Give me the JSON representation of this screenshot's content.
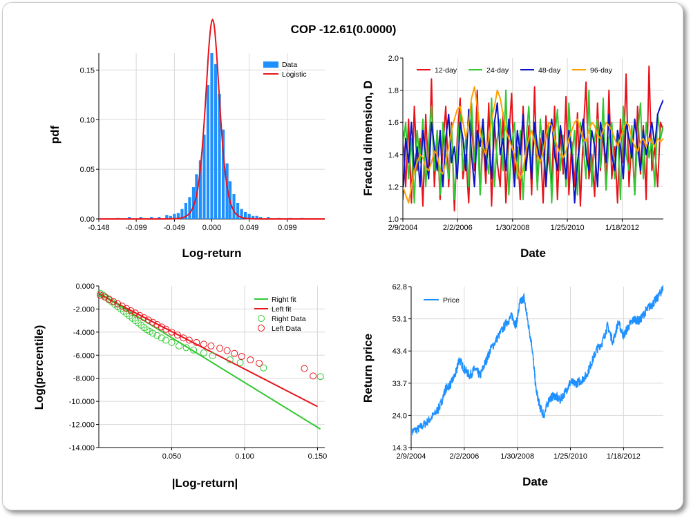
{
  "title": "COP -12.61(0.0000)",
  "chart_data": [
    {
      "id": "hist",
      "type": "bar",
      "xlabel": "Log-return",
      "ylabel": "pdf",
      "xlim": [
        -0.148,
        0.148
      ],
      "ylim": [
        0,
        0.167
      ],
      "xticks": [
        "-0.148",
        "-0.099",
        "-0.049",
        "0.000",
        "0.049",
        "0.099"
      ],
      "xtick_values": [
        -0.148,
        -0.099,
        -0.049,
        0.0,
        0.049,
        0.099
      ],
      "yticks": [
        "0.00",
        "0.05",
        "0.10",
        "0.15"
      ],
      "ytick_values": [
        0.0,
        0.05,
        0.1,
        0.15
      ],
      "legend": [
        "Data",
        "Logistic"
      ],
      "colors": {
        "bars": "#1e90ff",
        "fit": "#e8121a"
      },
      "bin_width": 0.0049,
      "bins": [
        [
          -0.123,
          0.001
        ],
        [
          -0.108,
          0.002
        ],
        [
          -0.093,
          0.002
        ],
        [
          -0.079,
          0.002
        ],
        [
          -0.069,
          0.002
        ],
        [
          -0.059,
          0.004
        ],
        [
          -0.054,
          0.003
        ],
        [
          -0.049,
          0.005
        ],
        [
          -0.044,
          0.006
        ],
        [
          -0.039,
          0.01
        ],
        [
          -0.034,
          0.016
        ],
        [
          -0.029,
          0.022
        ],
        [
          -0.024,
          0.032
        ],
        [
          -0.02,
          0.045
        ],
        [
          -0.015,
          0.059
        ],
        [
          -0.01,
          0.085
        ],
        [
          -0.005,
          0.135
        ],
        [
          0.0,
          0.167
        ],
        [
          0.005,
          0.156
        ],
        [
          0.01,
          0.126
        ],
        [
          0.015,
          0.09
        ],
        [
          0.02,
          0.056
        ],
        [
          0.024,
          0.038
        ],
        [
          0.029,
          0.025
        ],
        [
          0.034,
          0.016
        ],
        [
          0.039,
          0.01
        ],
        [
          0.044,
          0.007
        ],
        [
          0.049,
          0.005
        ],
        [
          0.054,
          0.003
        ],
        [
          0.059,
          0.003
        ],
        [
          0.064,
          0.002
        ],
        [
          0.074,
          0.002
        ],
        [
          0.088,
          0.001
        ],
        [
          0.103,
          0.001
        ],
        [
          0.118,
          0.001
        ]
      ],
      "fit": {
        "mu": 0.001,
        "s": 0.0061
      }
    },
    {
      "id": "fractal",
      "type": "line",
      "xlabel": "Date",
      "ylabel": "Fractal dimension, D",
      "xlim": [
        0,
        9.5
      ],
      "ylim": [
        1.0,
        2.0
      ],
      "xticks": [
        "2/9/2004",
        "2/2/2006",
        "1/30/2008",
        "1/25/2010",
        "1/18/2012"
      ],
      "xtick_values": [
        0,
        2,
        4,
        6,
        8
      ],
      "yticks": [
        "1.0",
        "1.2",
        "1.4",
        "1.6",
        "1.8",
        "2.0"
      ],
      "ytick_values": [
        1.0,
        1.2,
        1.4,
        1.6,
        1.8,
        2.0
      ],
      "series": [
        {
          "name": "12-day",
          "color": "#e8121a",
          "y": [
            1.55,
            1.2,
            1.62,
            1.1,
            1.7,
            1.3,
            1.5,
            1.08,
            1.65,
            1.25,
            1.87,
            1.2,
            1.55,
            1.12,
            1.45,
            1.7,
            1.2,
            1.6,
            1.05,
            1.5,
            1.75,
            1.25,
            1.4,
            1.1,
            1.62,
            1.3,
            1.8,
            1.15,
            1.5,
            1.22,
            1.72,
            1.08,
            1.6,
            1.35,
            1.2,
            1.66,
            1.1,
            1.5,
            1.78,
            1.25,
            1.45,
            1.12,
            1.7,
            1.3,
            1.58,
            1.15,
            1.82,
            1.2,
            1.5,
            1.1,
            1.64,
            1.36,
            1.22,
            1.7,
            1.12,
            1.55,
            1.28,
            1.76,
            1.15,
            1.48,
            1.2,
            1.66,
            1.08,
            1.52,
            1.85,
            1.25,
            1.4,
            1.14,
            1.72,
            1.3,
            1.56,
            1.18,
            1.8,
            1.25,
            1.45,
            1.1,
            1.62,
            1.35,
            1.9,
            1.2,
            1.5,
            1.15,
            1.7,
            1.28,
            1.58,
            1.12,
            1.95,
            1.3,
            1.45,
            1.2,
            1.6,
            1.55
          ]
        },
        {
          "name": "24-day",
          "color": "#32c832",
          "y": [
            1.45,
            1.6,
            1.25,
            1.5,
            1.1,
            1.55,
            1.35,
            1.62,
            1.2,
            1.48,
            1.7,
            1.3,
            1.55,
            1.15,
            1.6,
            1.4,
            1.25,
            1.58,
            1.12,
            1.45,
            1.65,
            1.3,
            1.5,
            1.2,
            1.72,
            1.35,
            1.55,
            1.15,
            1.6,
            1.4,
            1.28,
            1.75,
            1.2,
            1.5,
            1.62,
            1.3,
            1.8,
            1.15,
            1.45,
            1.6,
            1.25,
            1.55,
            1.12,
            1.48,
            1.7,
            1.3,
            1.55,
            1.18,
            1.62,
            1.4,
            1.25,
            1.58,
            1.1,
            1.5,
            1.68,
            1.3,
            1.52,
            1.2,
            1.72,
            1.38,
            1.55,
            1.15,
            1.6,
            1.45,
            1.25,
            1.8,
            1.2,
            1.5,
            1.62,
            1.32,
            1.75,
            1.18,
            1.5,
            1.6,
            1.25,
            1.55,
            1.12,
            1.7,
            1.4,
            1.3,
            1.58,
            1.15,
            1.52,
            1.72,
            1.25,
            1.6,
            1.38,
            1.5,
            1.2,
            1.65,
            1.5,
            1.58
          ]
        },
        {
          "name": "48-day",
          "color": "#0a14c8",
          "y": [
            1.12,
            1.5,
            1.35,
            1.6,
            1.3,
            1.45,
            1.2,
            1.55,
            1.4,
            1.25,
            1.6,
            1.45,
            1.3,
            1.55,
            1.2,
            1.5,
            1.65,
            1.35,
            1.45,
            1.25,
            1.6,
            1.5,
            1.3,
            1.68,
            1.4,
            1.2,
            1.55,
            1.45,
            1.62,
            1.3,
            1.5,
            1.25,
            1.6,
            1.72,
            1.4,
            1.5,
            1.3,
            1.62,
            1.45,
            1.2,
            1.55,
            1.4,
            1.65,
            1.3,
            1.5,
            1.25,
            1.6,
            1.45,
            1.35,
            1.55,
            1.2,
            1.5,
            1.62,
            1.4,
            1.3,
            1.58,
            1.45,
            1.25,
            1.55,
            1.4,
            1.1,
            1.35,
            1.5,
            1.62,
            1.4,
            1.3,
            1.55,
            1.45,
            1.2,
            1.6,
            1.5,
            1.35,
            1.65,
            1.4,
            1.3,
            1.55,
            1.45,
            1.25,
            1.6,
            1.5,
            1.38,
            1.62,
            1.45,
            1.3,
            1.55,
            1.4,
            1.5,
            1.6,
            1.45,
            1.65,
            1.7,
            1.74
          ]
        },
        {
          "name": "96-day",
          "color": "#ffa000",
          "y": [
            1.2,
            1.15,
            1.1,
            1.2,
            1.3,
            1.35,
            1.4,
            1.38,
            1.32,
            1.3,
            1.35,
            1.42,
            1.4,
            1.3,
            1.28,
            1.35,
            1.45,
            1.55,
            1.62,
            1.68,
            1.7,
            1.6,
            1.5,
            1.6,
            1.75,
            1.82,
            1.7,
            1.55,
            1.45,
            1.4,
            1.5,
            1.62,
            1.7,
            1.8,
            1.75,
            1.65,
            1.55,
            1.5,
            1.45,
            1.4,
            1.3,
            1.25,
            1.3,
            1.42,
            1.5,
            1.55,
            1.48,
            1.4,
            1.35,
            1.42,
            1.52,
            1.6,
            1.58,
            1.5,
            1.45,
            1.4,
            1.38,
            1.42,
            1.5,
            1.55,
            1.6,
            1.62,
            1.55,
            1.5,
            1.48,
            1.55,
            1.6,
            1.58,
            1.52,
            1.5,
            1.55,
            1.6,
            1.58,
            1.55,
            1.5,
            1.45,
            1.5,
            1.55,
            1.6,
            1.58,
            1.5,
            1.45,
            1.42,
            1.48,
            1.5,
            1.45,
            1.5,
            1.48,
            1.45,
            1.5,
            1.48,
            1.5
          ]
        }
      ]
    },
    {
      "id": "tails",
      "type": "scatter",
      "xlabel": "|Log-return|",
      "ylabel": "Log(percentile)",
      "xlim": [
        0.0,
        0.155
      ],
      "ylim": [
        -14.0,
        0.0
      ],
      "xticks": [
        "0.050",
        "0.100",
        "0.150"
      ],
      "xtick_values": [
        0.05,
        0.1,
        0.15
      ],
      "yticks": [
        "0.000",
        "-2.000",
        "-4.000",
        "-6.000",
        "-8.000",
        "-10.000",
        "-12.000",
        "-14.000"
      ],
      "ytick_values": [
        0,
        -2,
        -4,
        -6,
        -8,
        -10,
        -12,
        -14
      ],
      "legend": [
        "Right fit",
        "Left fit",
        "Right Data",
        "Left Data"
      ],
      "colors": {
        "right": "#32c832",
        "left": "#e8121a"
      },
      "right_fit": [
        [
          0.0,
          -0.6
        ],
        [
          0.152,
          -12.4
        ]
      ],
      "left_fit": [
        [
          0.0,
          -0.7
        ],
        [
          0.15,
          -10.45
        ]
      ],
      "right_data": [
        [
          0.001,
          -0.65
        ],
        [
          0.003,
          -0.8
        ],
        [
          0.005,
          -1.0
        ],
        [
          0.007,
          -1.2
        ],
        [
          0.009,
          -1.4
        ],
        [
          0.011,
          -1.6
        ],
        [
          0.013,
          -1.8
        ],
        [
          0.015,
          -2.0
        ],
        [
          0.017,
          -2.2
        ],
        [
          0.019,
          -2.4
        ],
        [
          0.021,
          -2.6
        ],
        [
          0.023,
          -2.8
        ],
        [
          0.025,
          -3.0
        ],
        [
          0.027,
          -3.2
        ],
        [
          0.029,
          -3.4
        ],
        [
          0.031,
          -3.6
        ],
        [
          0.033,
          -3.8
        ],
        [
          0.035,
          -3.95
        ],
        [
          0.037,
          -4.1
        ],
        [
          0.04,
          -4.3
        ],
        [
          0.043,
          -4.5
        ],
        [
          0.046,
          -4.7
        ],
        [
          0.05,
          -4.9
        ],
        [
          0.055,
          -5.2
        ],
        [
          0.06,
          -5.35
        ],
        [
          0.065,
          -5.55
        ],
        [
          0.072,
          -5.8
        ],
        [
          0.078,
          -6.05
        ],
        [
          0.09,
          -6.4
        ],
        [
          0.097,
          -6.65
        ],
        [
          0.113,
          -7.1
        ],
        [
          0.152,
          -7.85
        ]
      ],
      "left_data": [
        [
          0.001,
          -0.8
        ],
        [
          0.004,
          -0.95
        ],
        [
          0.007,
          -1.15
        ],
        [
          0.01,
          -1.35
        ],
        [
          0.013,
          -1.55
        ],
        [
          0.016,
          -1.75
        ],
        [
          0.019,
          -1.95
        ],
        [
          0.022,
          -2.15
        ],
        [
          0.025,
          -2.35
        ],
        [
          0.028,
          -2.55
        ],
        [
          0.031,
          -2.75
        ],
        [
          0.034,
          -2.95
        ],
        [
          0.037,
          -3.15
        ],
        [
          0.04,
          -3.35
        ],
        [
          0.043,
          -3.55
        ],
        [
          0.046,
          -3.75
        ],
        [
          0.05,
          -4.0
        ],
        [
          0.054,
          -4.25
        ],
        [
          0.058,
          -4.5
        ],
        [
          0.062,
          -4.7
        ],
        [
          0.067,
          -4.9
        ],
        [
          0.072,
          -5.05
        ],
        [
          0.077,
          -5.2
        ],
        [
          0.083,
          -5.4
        ],
        [
          0.088,
          -5.6
        ],
        [
          0.093,
          -5.85
        ],
        [
          0.098,
          -6.1
        ],
        [
          0.104,
          -6.4
        ],
        [
          0.11,
          -6.7
        ],
        [
          0.141,
          -7.15
        ],
        [
          0.147,
          -7.8
        ]
      ]
    },
    {
      "id": "price",
      "type": "line",
      "xlabel": "Date",
      "ylabel": "Return price",
      "xlim": [
        0,
        9.5
      ],
      "ylim": [
        14.3,
        62.8
      ],
      "xticks": [
        "2/9/2004",
        "2/2/2006",
        "1/30/2008",
        "1/25/2010",
        "1/18/2012"
      ],
      "xtick_values": [
        0,
        2,
        4,
        6,
        8
      ],
      "yticks": [
        "14.3",
        "24.0",
        "33.7",
        "43.4",
        "53.1",
        "62.8"
      ],
      "ytick_values": [
        14.3,
        24.0,
        33.7,
        43.4,
        53.1,
        62.8
      ],
      "legend": [
        "Price"
      ],
      "color": "#1e90ff",
      "keypoints": [
        [
          0,
          19
        ],
        [
          0.3,
          20
        ],
        [
          0.6,
          22
        ],
        [
          0.9,
          24.5
        ],
        [
          1.1,
          27
        ],
        [
          1.3,
          32
        ],
        [
          1.5,
          33.5
        ],
        [
          1.7,
          37
        ],
        [
          1.8,
          41
        ],
        [
          2.0,
          38
        ],
        [
          2.2,
          36
        ],
        [
          2.4,
          38
        ],
        [
          2.6,
          36
        ],
        [
          2.8,
          40
        ],
        [
          3.0,
          44
        ],
        [
          3.3,
          48
        ],
        [
          3.6,
          52
        ],
        [
          3.8,
          54
        ],
        [
          3.95,
          51
        ],
        [
          4.1,
          58
        ],
        [
          4.25,
          59.5
        ],
        [
          4.4,
          52
        ],
        [
          4.55,
          45
        ],
        [
          4.7,
          32
        ],
        [
          4.85,
          26.5
        ],
        [
          5.0,
          24
        ],
        [
          5.2,
          29
        ],
        [
          5.4,
          30
        ],
        [
          5.6,
          28.5
        ],
        [
          5.8,
          31
        ],
        [
          6.0,
          34
        ],
        [
          6.2,
          33.5
        ],
        [
          6.4,
          34.5
        ],
        [
          6.6,
          36
        ],
        [
          6.8,
          40
        ],
        [
          7.0,
          44
        ],
        [
          7.2,
          46
        ],
        [
          7.4,
          51
        ],
        [
          7.6,
          46
        ],
        [
          7.8,
          52
        ],
        [
          8.0,
          48
        ],
        [
          8.2,
          51
        ],
        [
          8.4,
          53
        ],
        [
          8.6,
          52.5
        ],
        [
          8.8,
          55
        ],
        [
          9.0,
          57
        ],
        [
          9.2,
          58.5
        ],
        [
          9.4,
          61
        ],
        [
          9.5,
          63
        ]
      ]
    }
  ]
}
